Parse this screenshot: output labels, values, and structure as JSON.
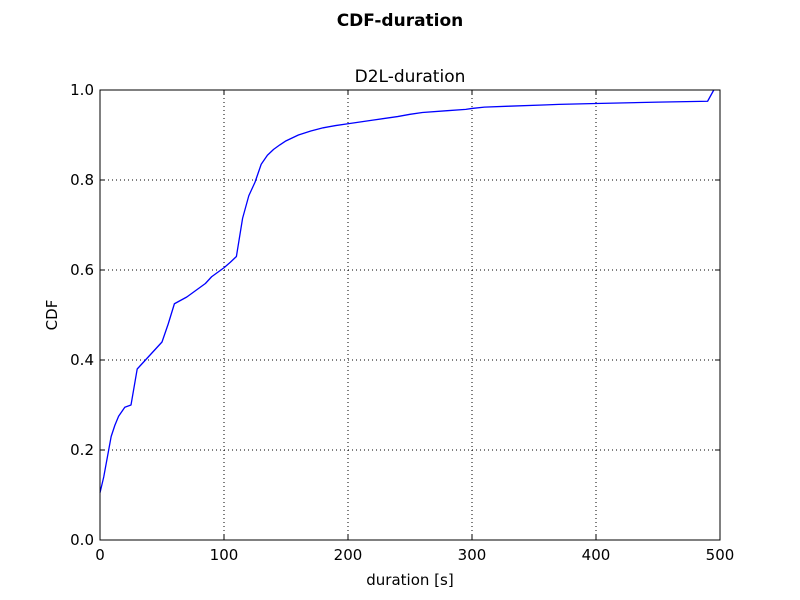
{
  "figure": {
    "suptitle": "CDF-duration"
  },
  "chart_data": {
    "type": "line",
    "title": "D2L-duration",
    "xlabel": "duration [s]",
    "ylabel": "CDF",
    "xlim": [
      0,
      500
    ],
    "ylim": [
      0.0,
      1.0
    ],
    "xticks": [
      0,
      100,
      200,
      300,
      400,
      500
    ],
    "yticks": [
      0.0,
      0.2,
      0.4,
      0.6,
      0.8,
      1.0
    ],
    "xtick_labels": [
      "0",
      "100",
      "200",
      "300",
      "400",
      "500"
    ],
    "ytick_labels": [
      "0.0",
      "0.2",
      "0.4",
      "0.6",
      "0.8",
      "1.0"
    ],
    "grid": true,
    "series": [
      {
        "color": "#0000ff",
        "x": [
          0,
          3,
          6,
          9,
          12,
          15,
          20,
          25,
          30,
          35,
          40,
          45,
          50,
          55,
          60,
          70,
          80,
          85,
          90,
          95,
          100,
          105,
          110,
          115,
          120,
          125,
          130,
          135,
          140,
          145,
          150,
          160,
          170,
          180,
          190,
          200,
          220,
          240,
          250,
          260,
          280,
          295,
          300,
          310,
          330,
          360,
          370,
          400,
          450,
          490,
          493,
          495
        ],
        "y": [
          0.105,
          0.14,
          0.185,
          0.23,
          0.255,
          0.275,
          0.295,
          0.3,
          0.38,
          0.395,
          0.41,
          0.425,
          0.44,
          0.48,
          0.525,
          0.54,
          0.56,
          0.57,
          0.585,
          0.595,
          0.605,
          0.617,
          0.63,
          0.715,
          0.765,
          0.795,
          0.835,
          0.855,
          0.868,
          0.878,
          0.887,
          0.9,
          0.909,
          0.916,
          0.921,
          0.925,
          0.933,
          0.941,
          0.946,
          0.95,
          0.954,
          0.957,
          0.959,
          0.962,
          0.964,
          0.967,
          0.968,
          0.97,
          0.973,
          0.975,
          0.99,
          1.0
        ]
      }
    ]
  }
}
